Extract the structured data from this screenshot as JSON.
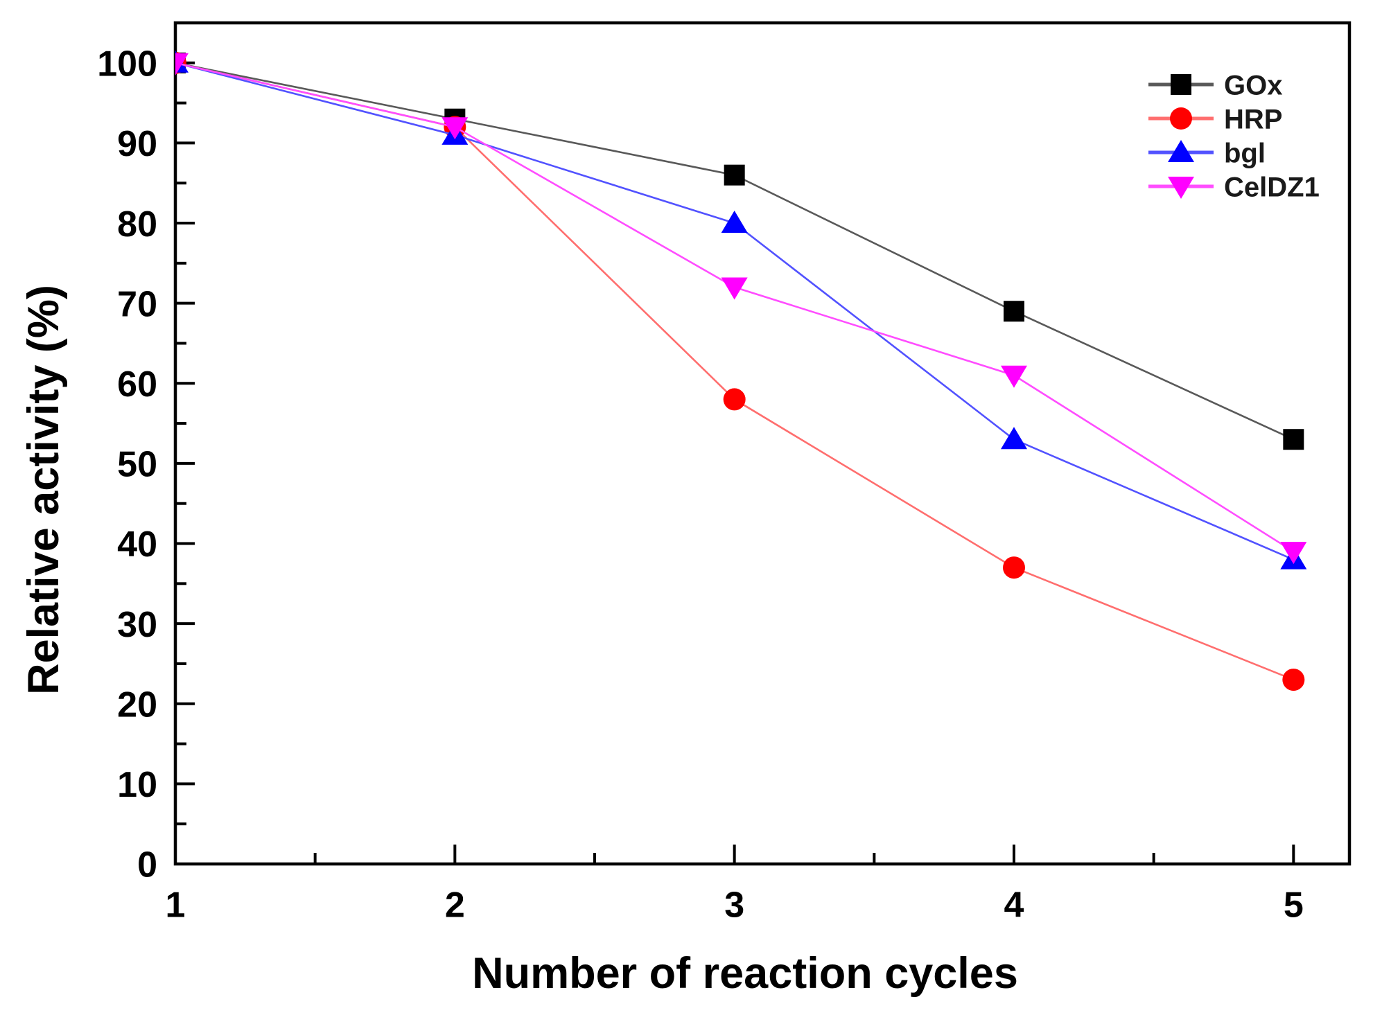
{
  "figure": {
    "background_color": "#ffffff",
    "axis_color": "#000000",
    "text_color": "#000000"
  },
  "chart_data": {
    "type": "line",
    "title": "",
    "xlabel": "Number of reaction cycles",
    "ylabel": "Relative activity (%)",
    "x": [
      1,
      2,
      3,
      4,
      5
    ],
    "series": [
      {
        "name": "GOx",
        "marker": "square",
        "marker_color": "#000000",
        "line_color": "#595959",
        "values": [
          100,
          93,
          86,
          69,
          53
        ]
      },
      {
        "name": "HRP",
        "marker": "circle",
        "marker_color": "#ff0000",
        "line_color": "#ff6e6e",
        "values": [
          100,
          92,
          58,
          37,
          23
        ]
      },
      {
        "name": "bgl",
        "marker": "triangle-up",
        "marker_color": "#0000ff",
        "line_color": "#5252ff",
        "values": [
          100,
          91,
          80,
          53,
          38
        ]
      },
      {
        "name": "CelDZ1",
        "marker": "triangle-down",
        "marker_color": "#ff00ff",
        "line_color": "#ff4dff",
        "values": [
          100,
          92,
          72,
          61,
          39
        ]
      }
    ],
    "xlim": [
      1,
      5.2
    ],
    "ylim": [
      0,
      105
    ],
    "x_major_ticks": [
      1,
      2,
      3,
      4,
      5
    ],
    "x_minor_ticks": [
      1.5,
      2.5,
      3.5,
      4.5
    ],
    "y_major_ticks": [
      0,
      10,
      20,
      30,
      40,
      50,
      60,
      70,
      80,
      90,
      100
    ],
    "y_minor_ticks": [
      5,
      15,
      25,
      35,
      45,
      55,
      65,
      75,
      85,
      95
    ],
    "x_tick_labels": [
      "1",
      "2",
      "3",
      "4",
      "5"
    ],
    "y_tick_labels": [
      "0",
      "10",
      "20",
      "30",
      "40",
      "50",
      "60",
      "70",
      "80",
      "90",
      "100"
    ],
    "grid": false,
    "legend_position": "top-right",
    "legend_labels": [
      "GOx",
      "HRP",
      "bgl",
      "CelDZ1"
    ]
  }
}
